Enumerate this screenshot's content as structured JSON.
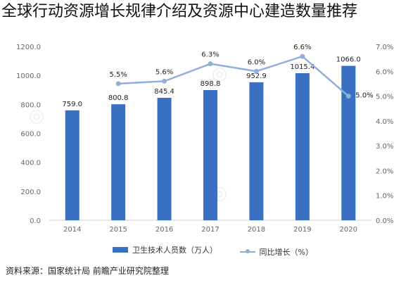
{
  "page": {
    "title": "全球行动资源增长规律介绍及资源中心建造数量推荐",
    "source": "资料来源：国家统计局 前瞻产业研究院整理"
  },
  "colors": {
    "bar": "#3a70c2",
    "line": "#8fb0d9",
    "axis_text": "#666666",
    "grid": "#e6e6e6"
  },
  "chart_data": {
    "type": "bar",
    "categories": [
      "2014",
      "2015",
      "2016",
      "2017",
      "2018",
      "2019",
      "2020"
    ],
    "series": [
      {
        "name": "卫生技术人员数（万人）",
        "type": "bar",
        "axis": "left",
        "values": [
          759.0,
          800.8,
          845.4,
          898.8,
          952.9,
          1015.4,
          1066.0
        ],
        "labels": [
          "759.0",
          "800.8",
          "845.4",
          "898.8",
          "952.9",
          "1015.4",
          "1066.0"
        ]
      },
      {
        "name": "同比增长（%）",
        "type": "line",
        "axis": "right",
        "values": [
          null,
          5.5,
          5.6,
          6.3,
          6.0,
          6.6,
          5.0
        ],
        "labels": [
          "",
          "5.5%",
          "5.6%",
          "6.3%",
          "6.0%",
          "6.6%",
          "5.0%"
        ]
      }
    ],
    "y_left": {
      "range": [
        0,
        1200
      ],
      "ticks": [
        0,
        200,
        400,
        600,
        800,
        1000,
        1200
      ],
      "tick_labels": [
        "0.0",
        "200.0",
        "400.0",
        "600.0",
        "800.0",
        "1000.0",
        "1200.0"
      ]
    },
    "y_right": {
      "range": [
        0,
        7
      ],
      "ticks": [
        0,
        1,
        2,
        3,
        4,
        5,
        6,
        7
      ],
      "tick_labels": [
        "0.0%",
        "1.0%",
        "2.0%",
        "3.0%",
        "4.0%",
        "5.0%",
        "6.0%",
        "7.0%"
      ]
    },
    "grid": false,
    "legend_position": "bottom"
  }
}
